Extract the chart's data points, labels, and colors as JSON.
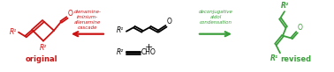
{
  "bg_color": "#ffffff",
  "red_color": "#cc1111",
  "green_color": "#3a9e3a",
  "text_dienamine": "dienamine-\niminium-\nallenamine\ncascade",
  "text_deconjugative": "deconjugative\naldol\ncondensation",
  "text_original": "original",
  "text_revised": "revised",
  "figsize": [
    3.78,
    0.82
  ],
  "dpi": 100
}
